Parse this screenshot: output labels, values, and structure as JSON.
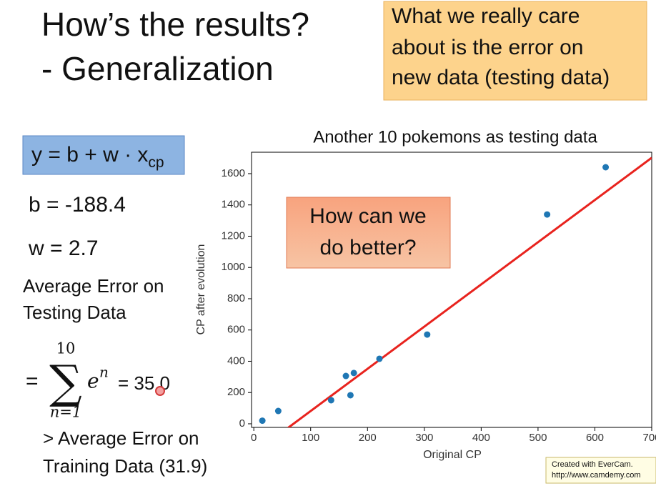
{
  "slide": {
    "title": [
      "How’s the results?",
      "- Generalization"
    ],
    "note": [
      "What we really care",
      "about is the error on",
      "new data (testing data)"
    ],
    "model": {
      "formula": "y = b + w · x",
      "subscript": "cp"
    },
    "b": "b = -188.4",
    "w": "w = 2.7",
    "error_heading": [
      "Average Error on",
      "Testing Data"
    ],
    "sum": {
      "equals": "=",
      "upper": "10",
      "symbol": "∑",
      "term": "e",
      "exponent": "n",
      "lower": "n=1",
      "result": "= 35.0"
    },
    "comparison": [
      "> Average Error on",
      "Training Data (31.9)"
    ],
    "callout": [
      "How can we",
      "do better?"
    ],
    "watermark": [
      "Created with EverCam.",
      "http://www.camdemy.com"
    ]
  },
  "chart_data": {
    "type": "scatter",
    "title": "Another 10 pokemons as testing data",
    "x_label": "Original CP",
    "y_label": "CP after evolution",
    "x": [
      15,
      43,
      136,
      162,
      170,
      176,
      221,
      305,
      516,
      619
    ],
    "values": [
      20,
      82,
      151,
      306,
      183,
      325,
      416,
      571,
      1339,
      1641
    ],
    "color": "#1f77b4",
    "fit": {
      "x": [
        60,
        700
      ],
      "values": [
        -26.4,
        1701.6
      ],
      "color": "#e8231e"
    },
    "xlim": [
      -4,
      700
    ],
    "ylim": [
      -23,
      1737
    ],
    "xticks": [
      0,
      100,
      200,
      300,
      400,
      500,
      600,
      700
    ],
    "yticks": [
      0,
      200,
      400,
      600,
      800,
      1000,
      1200,
      1400,
      1600
    ]
  }
}
